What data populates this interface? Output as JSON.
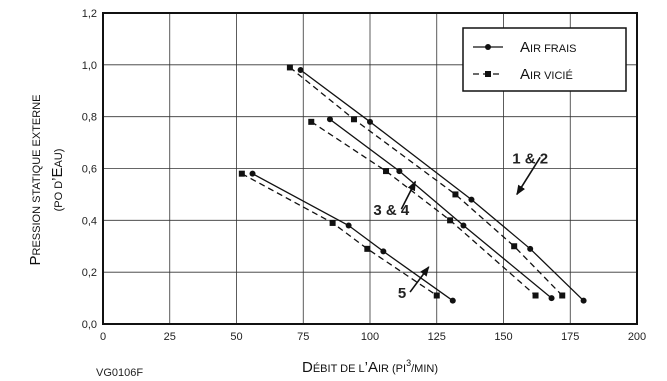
{
  "chart_data": {
    "type": "line",
    "xlabel_parts": [
      "D",
      "ÉBIT DE L",
      "’A",
      "IR (PI",
      "3",
      "/MIN)"
    ],
    "ylabel_line1_parts": [
      "P",
      "RESSION STATIQUE EXTERNE"
    ],
    "ylabel_line2_parts": [
      "(PO D",
      "’E",
      "AU)"
    ],
    "xlim": [
      0,
      200
    ],
    "ylim": [
      0,
      1.2
    ],
    "x_ticks": [
      0,
      25,
      50,
      75,
      100,
      125,
      150,
      175,
      200
    ],
    "y_ticks": [
      "0,0",
      "0,2",
      "0,4",
      "0,6",
      "0,8",
      "1,0",
      "1,2"
    ],
    "y_tick_values": [
      0,
      0.2,
      0.4,
      0.6,
      0.8,
      1.0,
      1.2
    ],
    "grid": true,
    "legend_position": "top-right",
    "legend": [
      {
        "label_parts": [
          "A",
          "IR FRAIS"
        ],
        "style": "solid",
        "marker": "circle"
      },
      {
        "label_parts": [
          "A",
          "IR VICIÉ"
        ],
        "style": "dashed",
        "marker": "square"
      }
    ],
    "series": [
      {
        "group": "1 & 2",
        "kind": "air-frais",
        "style": "solid",
        "marker": "circle",
        "points": [
          [
            74,
            0.98
          ],
          [
            100,
            0.78
          ],
          [
            138,
            0.48
          ],
          [
            160,
            0.29
          ],
          [
            180,
            0.09
          ]
        ]
      },
      {
        "group": "1 & 2",
        "kind": "air-vicie",
        "style": "dashed",
        "marker": "square",
        "points": [
          [
            70,
            0.99
          ],
          [
            94,
            0.79
          ],
          [
            132,
            0.5
          ],
          [
            154,
            0.3
          ],
          [
            172,
            0.11
          ]
        ]
      },
      {
        "group": "3 & 4",
        "kind": "air-frais",
        "style": "solid",
        "marker": "circle",
        "points": [
          [
            85,
            0.79
          ],
          [
            111,
            0.59
          ],
          [
            135,
            0.38
          ],
          [
            168,
            0.1
          ]
        ]
      },
      {
        "group": "3 & 4",
        "kind": "air-vicie",
        "style": "dashed",
        "marker": "square",
        "points": [
          [
            78,
            0.78
          ],
          [
            106,
            0.59
          ],
          [
            130,
            0.4
          ],
          [
            162,
            0.11
          ]
        ]
      },
      {
        "group": "5",
        "kind": "air-frais",
        "style": "solid",
        "marker": "circle",
        "points": [
          [
            56,
            0.58
          ],
          [
            92,
            0.38
          ],
          [
            105,
            0.28
          ],
          [
            131,
            0.09
          ]
        ]
      },
      {
        "group": "5",
        "kind": "air-vicie",
        "style": "dashed",
        "marker": "square",
        "points": [
          [
            52,
            0.58
          ],
          [
            86,
            0.39
          ],
          [
            99,
            0.29
          ],
          [
            125,
            0.11
          ]
        ]
      }
    ],
    "annotations": [
      {
        "text": "1 & 2",
        "x": 160,
        "y": 0.62,
        "arrow_to": [
          155,
          0.5
        ]
      },
      {
        "text": "3 & 4",
        "x": 108,
        "y": 0.42,
        "arrow_to": [
          117,
          0.55
        ]
      },
      {
        "text": "5",
        "x": 112,
        "y": 0.1,
        "arrow_to": [
          122,
          0.22
        ]
      }
    ]
  },
  "footer": {
    "code": "VG0106F"
  }
}
